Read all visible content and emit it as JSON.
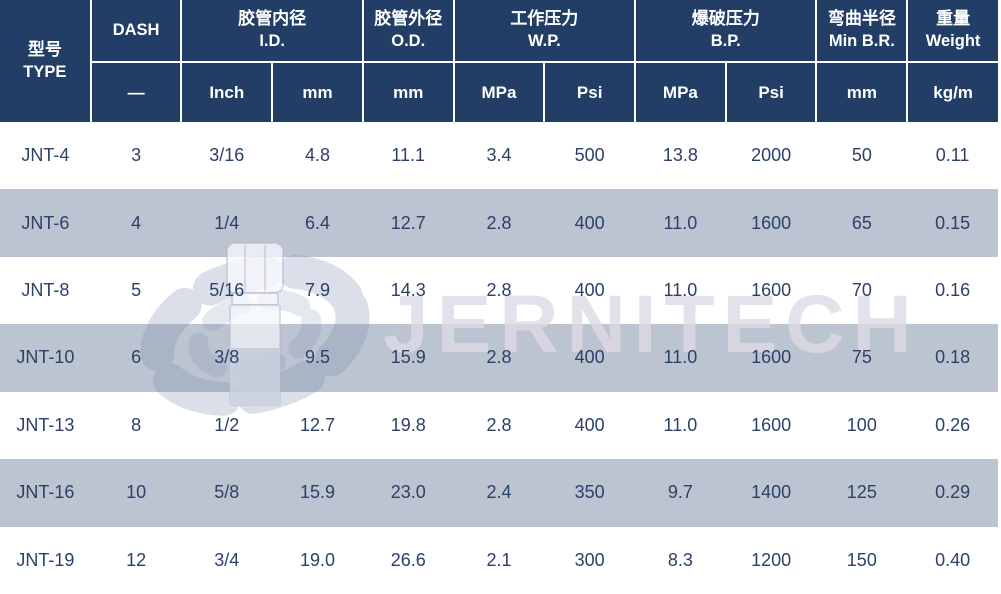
{
  "table": {
    "header": {
      "type": {
        "zh": "型号",
        "en": "TYPE"
      },
      "dash": {
        "label": "DASH",
        "unit": "—"
      },
      "id": {
        "zh": "胶管内径",
        "en": "I.D.",
        "unit_inch": "Inch",
        "unit_mm": "mm"
      },
      "od": {
        "zh": "胶管外径",
        "en": "O.D.",
        "unit_mm": "mm"
      },
      "wp": {
        "zh": "工作压力",
        "en": "W.P.",
        "unit_mpa": "MPa",
        "unit_psi": "Psi"
      },
      "bp": {
        "zh": "爆破压力",
        "en": "B.P.",
        "unit_mpa": "MPa",
        "unit_psi": "Psi"
      },
      "br": {
        "zh": "弯曲半径",
        "en": "Min B.R.",
        "unit_mm": "mm"
      },
      "weight": {
        "zh": "重量",
        "en": "Weight",
        "unit": "kg/m"
      }
    },
    "columns": [
      "type",
      "dash",
      "id-inch",
      "id-mm",
      "od-mm",
      "wp-mpa",
      "wp-psi",
      "bp-mpa",
      "bp-psi",
      "br-mm",
      "weight-kgm"
    ],
    "rows": [
      [
        "JNT-4",
        "3",
        "3/16",
        "4.8",
        "11.1",
        "3.4",
        "500",
        "13.8",
        "2000",
        "50",
        "0.11"
      ],
      [
        "JNT-6",
        "4",
        "1/4",
        "6.4",
        "12.7",
        "2.8",
        "400",
        "11.0",
        "1600",
        "65",
        "0.15"
      ],
      [
        "JNT-8",
        "5",
        "5/16",
        "7.9",
        "14.3",
        "2.8",
        "400",
        "11.0",
        "1600",
        "70",
        "0.16"
      ],
      [
        "JNT-10",
        "6",
        "3/8",
        "9.5",
        "15.9",
        "2.8",
        "400",
        "11.0",
        "1600",
        "75",
        "0.18"
      ],
      [
        "JNT-13",
        "8",
        "1/2",
        "12.7",
        "19.8",
        "2.8",
        "400",
        "11.0",
        "1600",
        "100",
        "0.26"
      ],
      [
        "JNT-16",
        "10",
        "5/8",
        "15.9",
        "23.0",
        "2.4",
        "350",
        "9.7",
        "1400",
        "125",
        "0.29"
      ],
      [
        "JNT-19",
        "12",
        "3/4",
        "19.0",
        "26.6",
        "2.1",
        "300",
        "8.3",
        "1200",
        "150",
        "0.40"
      ]
    ]
  },
  "watermark": {
    "text": "JERNITECH",
    "logo": "impeller-fan-with-hose-fitting"
  },
  "colors": {
    "header_bg": "#223e66",
    "header_text": "#ffffff",
    "row_bg": "#ffffff",
    "row_alt_bg": "#bdc4d1",
    "cell_text": "#2b4168",
    "divider": "#ffffff"
  }
}
